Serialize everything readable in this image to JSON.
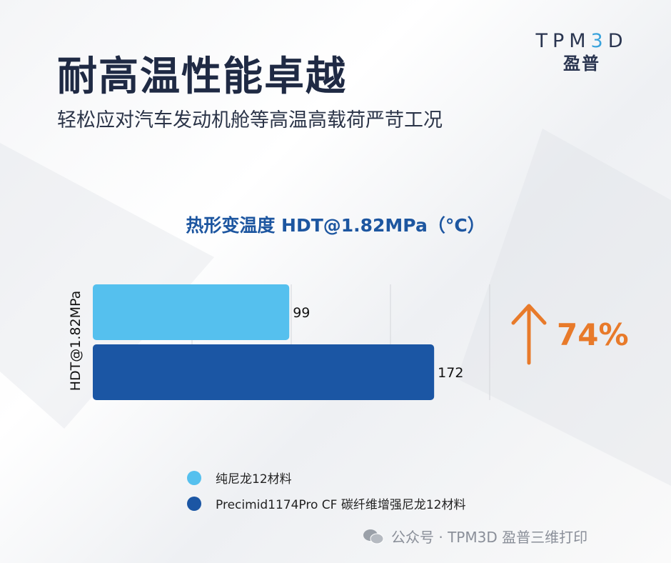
{
  "header": {
    "title": "耐高温性能卓越",
    "subtitle": "轻松应对汽车发动机舱等高温高载荷严苛工况"
  },
  "logo": {
    "text_en": "TPM3D",
    "text_cn": "盈普"
  },
  "chart_data": {
    "type": "bar",
    "orientation": "horizontal",
    "title": "热形变温度 HDT@1.82MPa（°C）",
    "categories": [
      "HDT@1.82MPa"
    ],
    "ylabel": "HDT@1.82MPa",
    "xlim": [
      0,
      200
    ],
    "grid": true,
    "gridlines": [
      50,
      100,
      150,
      200
    ],
    "legend_placement": "bottom",
    "series": [
      {
        "name": "纯尼龙12材料",
        "values": [
          99
        ],
        "color": "#55c0ee",
        "label": "99"
      },
      {
        "name": "Precimid1174Pro CF 碳纤维增强尼龙12材料",
        "values": [
          172
        ],
        "color": "#1b56a4",
        "label": "172"
      }
    ],
    "annotation": {
      "text": "74%",
      "icon": "arrow-up-icon",
      "color": "#e87a2a"
    }
  },
  "footer": {
    "text": "公众号 · TPM3D 盈普三维打印",
    "icon": "wechat-icon"
  }
}
